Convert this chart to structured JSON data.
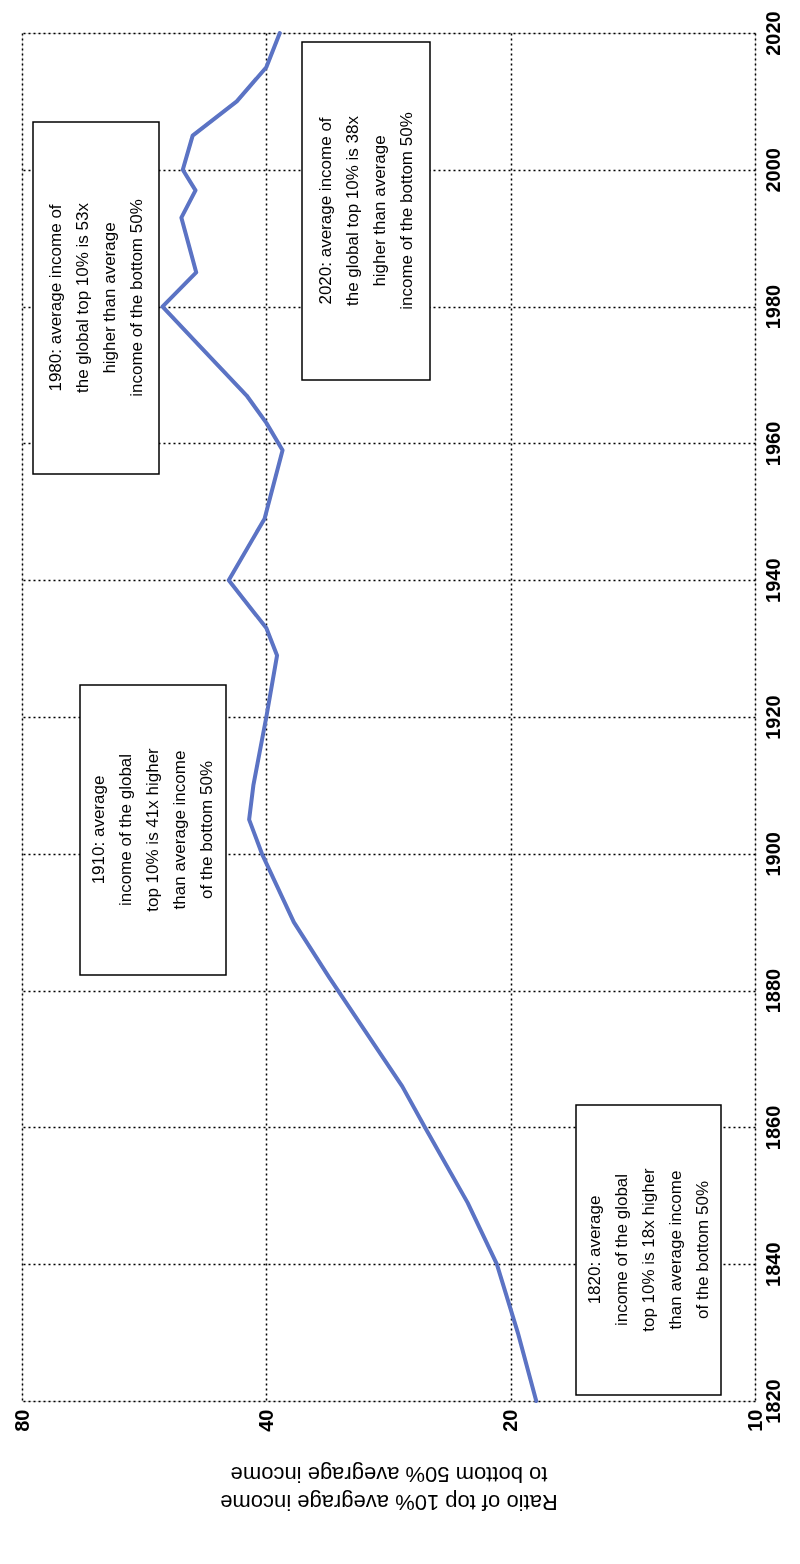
{
  "chart_data": {
    "type": "line",
    "x": [
      18.6,
      19.6,
      20.8,
      22.6,
      25.5,
      27.2,
      33.5,
      37,
      40.5,
      42,
      41.5,
      40,
      38.8,
      40,
      44.5,
      40.2,
      38.2,
      40,
      42.3,
      49,
      53.7,
      48.8,
      50.9,
      48.9,
      50.7,
      49.3,
      43.5,
      40,
      38.5
    ],
    "series": [
      {
        "color": "#5b73c4",
        "values": [
          1820,
          1830,
          1840,
          1849,
          1860,
          1866,
          1882,
          1890,
          1900,
          1905,
          1910,
          1920,
          1929,
          1933,
          1940,
          1949,
          1959,
          1963,
          1967,
          1975,
          1980,
          1985,
          1993,
          1997,
          2000,
          2005,
          2010,
          2015,
          2020
        ]
      }
    ],
    "xlim": [
      80,
      10
    ],
    "xticks": [
      80,
      40,
      20,
      10
    ],
    "log": "x",
    "ylim": [
      1820,
      2020
    ],
    "yticks": [
      1820,
      1840,
      1860,
      1880,
      1900,
      1920,
      1940,
      1960,
      1980,
      2000,
      2020
    ],
    "grid": true,
    "xlabel": "Ratio of top 10% avegrage income\nto bottom 50% avegrage income",
    "annotations": [
      "1820: average\nincome of the global\ntop 10% is 18x higher\nthan average income\nof the bottom 50%",
      "1910: average\nincome of the global\ntop 10% is 41x higher\nthan average income\nof the bottom 50%",
      "1980: average income of\nthe global top 10% is 53x\nhigher than average\nincome of the bottom 50%",
      "2020: average income of\nthe global top 10% is 38x\nhigher than average\nincome of the bottom 50%"
    ]
  }
}
